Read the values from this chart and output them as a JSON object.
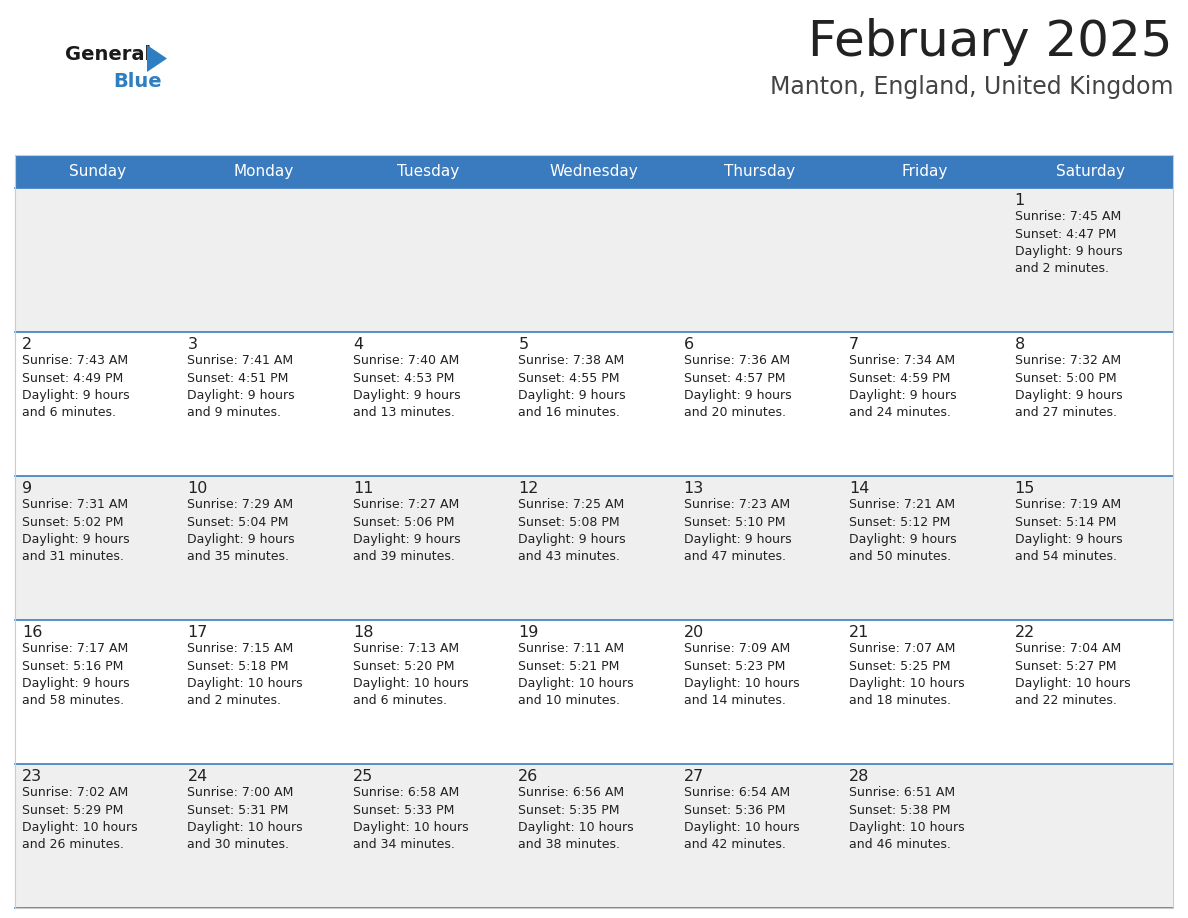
{
  "title": "February 2025",
  "subtitle": "Manton, England, United Kingdom",
  "header_color": "#3a7bbf",
  "header_text_color": "#ffffff",
  "cell_bg_color": "#efefef",
  "cell_bg_white": "#ffffff",
  "text_color": "#222222",
  "subtitle_color": "#444444",
  "border_color": "#3a7bbf",
  "days_of_week": [
    "Sunday",
    "Monday",
    "Tuesday",
    "Wednesday",
    "Thursday",
    "Friday",
    "Saturday"
  ],
  "weeks": [
    [
      {
        "day": null,
        "info": null
      },
      {
        "day": null,
        "info": null
      },
      {
        "day": null,
        "info": null
      },
      {
        "day": null,
        "info": null
      },
      {
        "day": null,
        "info": null
      },
      {
        "day": null,
        "info": null
      },
      {
        "day": 1,
        "info": "Sunrise: 7:45 AM\nSunset: 4:47 PM\nDaylight: 9 hours\nand 2 minutes."
      }
    ],
    [
      {
        "day": 2,
        "info": "Sunrise: 7:43 AM\nSunset: 4:49 PM\nDaylight: 9 hours\nand 6 minutes."
      },
      {
        "day": 3,
        "info": "Sunrise: 7:41 AM\nSunset: 4:51 PM\nDaylight: 9 hours\nand 9 minutes."
      },
      {
        "day": 4,
        "info": "Sunrise: 7:40 AM\nSunset: 4:53 PM\nDaylight: 9 hours\nand 13 minutes."
      },
      {
        "day": 5,
        "info": "Sunrise: 7:38 AM\nSunset: 4:55 PM\nDaylight: 9 hours\nand 16 minutes."
      },
      {
        "day": 6,
        "info": "Sunrise: 7:36 AM\nSunset: 4:57 PM\nDaylight: 9 hours\nand 20 minutes."
      },
      {
        "day": 7,
        "info": "Sunrise: 7:34 AM\nSunset: 4:59 PM\nDaylight: 9 hours\nand 24 minutes."
      },
      {
        "day": 8,
        "info": "Sunrise: 7:32 AM\nSunset: 5:00 PM\nDaylight: 9 hours\nand 27 minutes."
      }
    ],
    [
      {
        "day": 9,
        "info": "Sunrise: 7:31 AM\nSunset: 5:02 PM\nDaylight: 9 hours\nand 31 minutes."
      },
      {
        "day": 10,
        "info": "Sunrise: 7:29 AM\nSunset: 5:04 PM\nDaylight: 9 hours\nand 35 minutes."
      },
      {
        "day": 11,
        "info": "Sunrise: 7:27 AM\nSunset: 5:06 PM\nDaylight: 9 hours\nand 39 minutes."
      },
      {
        "day": 12,
        "info": "Sunrise: 7:25 AM\nSunset: 5:08 PM\nDaylight: 9 hours\nand 43 minutes."
      },
      {
        "day": 13,
        "info": "Sunrise: 7:23 AM\nSunset: 5:10 PM\nDaylight: 9 hours\nand 47 minutes."
      },
      {
        "day": 14,
        "info": "Sunrise: 7:21 AM\nSunset: 5:12 PM\nDaylight: 9 hours\nand 50 minutes."
      },
      {
        "day": 15,
        "info": "Sunrise: 7:19 AM\nSunset: 5:14 PM\nDaylight: 9 hours\nand 54 minutes."
      }
    ],
    [
      {
        "day": 16,
        "info": "Sunrise: 7:17 AM\nSunset: 5:16 PM\nDaylight: 9 hours\nand 58 minutes."
      },
      {
        "day": 17,
        "info": "Sunrise: 7:15 AM\nSunset: 5:18 PM\nDaylight: 10 hours\nand 2 minutes."
      },
      {
        "day": 18,
        "info": "Sunrise: 7:13 AM\nSunset: 5:20 PM\nDaylight: 10 hours\nand 6 minutes."
      },
      {
        "day": 19,
        "info": "Sunrise: 7:11 AM\nSunset: 5:21 PM\nDaylight: 10 hours\nand 10 minutes."
      },
      {
        "day": 20,
        "info": "Sunrise: 7:09 AM\nSunset: 5:23 PM\nDaylight: 10 hours\nand 14 minutes."
      },
      {
        "day": 21,
        "info": "Sunrise: 7:07 AM\nSunset: 5:25 PM\nDaylight: 10 hours\nand 18 minutes."
      },
      {
        "day": 22,
        "info": "Sunrise: 7:04 AM\nSunset: 5:27 PM\nDaylight: 10 hours\nand 22 minutes."
      }
    ],
    [
      {
        "day": 23,
        "info": "Sunrise: 7:02 AM\nSunset: 5:29 PM\nDaylight: 10 hours\nand 26 minutes."
      },
      {
        "day": 24,
        "info": "Sunrise: 7:00 AM\nSunset: 5:31 PM\nDaylight: 10 hours\nand 30 minutes."
      },
      {
        "day": 25,
        "info": "Sunrise: 6:58 AM\nSunset: 5:33 PM\nDaylight: 10 hours\nand 34 minutes."
      },
      {
        "day": 26,
        "info": "Sunrise: 6:56 AM\nSunset: 5:35 PM\nDaylight: 10 hours\nand 38 minutes."
      },
      {
        "day": 27,
        "info": "Sunrise: 6:54 AM\nSunset: 5:36 PM\nDaylight: 10 hours\nand 42 minutes."
      },
      {
        "day": 28,
        "info": "Sunrise: 6:51 AM\nSunset: 5:38 PM\nDaylight: 10 hours\nand 46 minutes."
      },
      {
        "day": null,
        "info": null
      }
    ]
  ],
  "logo_general_color": "#1a1a1a",
  "logo_blue_color": "#2e7fc1",
  "logo_triangle_color": "#2e7fc1",
  "fig_width": 11.88,
  "fig_height": 9.18,
  "dpi": 100
}
